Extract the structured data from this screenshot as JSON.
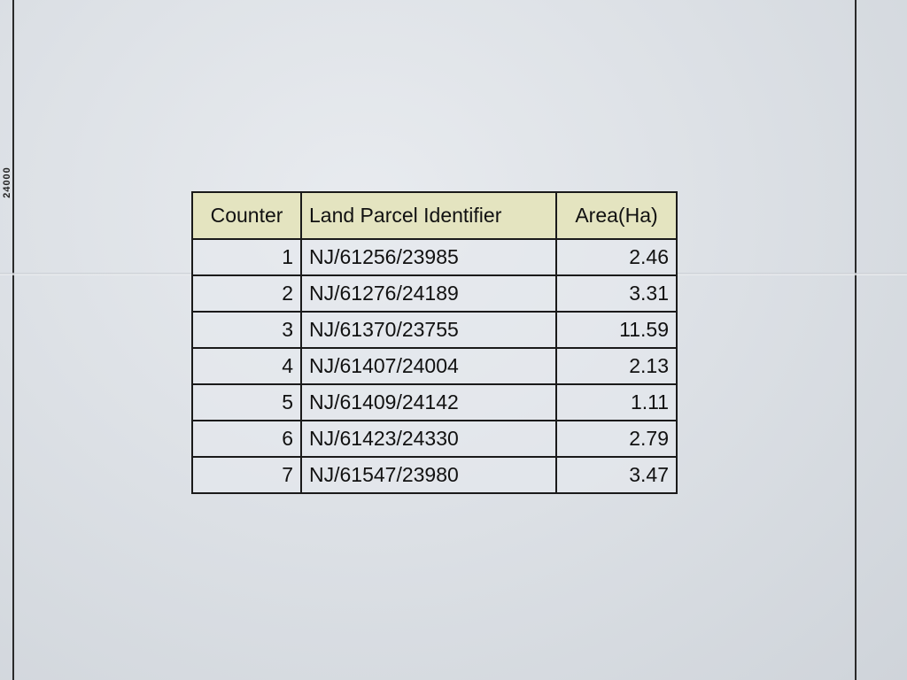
{
  "edge_text": "24000",
  "table": {
    "headers": [
      "Counter",
      "Land Parcel Identifier",
      "Area(Ha)"
    ],
    "rows": [
      [
        "1",
        "NJ/61256/23985",
        "2.46"
      ],
      [
        "2",
        "NJ/61276/24189",
        "3.31"
      ],
      [
        "3",
        "NJ/61370/23755",
        "11.59"
      ],
      [
        "4",
        "NJ/61407/24004",
        "2.13"
      ],
      [
        "5",
        "NJ/61409/24142",
        "1.11"
      ],
      [
        "6",
        "NJ/61423/24330",
        "2.79"
      ],
      [
        "7",
        "NJ/61547/23980",
        "3.47"
      ]
    ],
    "header_color": "#e4e4c0"
  }
}
